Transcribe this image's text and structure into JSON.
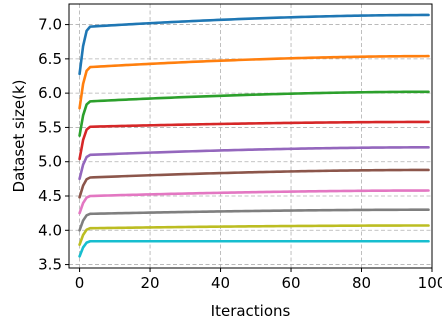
{
  "chart_data": {
    "type": "line",
    "title": "",
    "xlabel": "Iteractions",
    "ylabel": "Dataset size(k)",
    "xlim": [
      -3,
      100
    ],
    "ylim": [
      3.45,
      7.3
    ],
    "xticks": [
      0,
      20,
      40,
      60,
      80,
      100
    ],
    "xtick_labels": [
      "0",
      "20",
      "40",
      "60",
      "80",
      "100"
    ],
    "yticks": [
      3.5,
      4.0,
      4.5,
      5.0,
      5.5,
      6.0,
      6.5,
      7.0
    ],
    "ytick_labels": [
      "3.5",
      "4.0",
      "4.5",
      "5.0",
      "5.5",
      "6.0",
      "6.5",
      "7.0"
    ],
    "grid": true,
    "series": [
      {
        "color": "#1f77b4",
        "start": 6.28,
        "knee": 6.97,
        "end": 7.14
      },
      {
        "color": "#ff7f0e",
        "start": 5.78,
        "knee": 6.38,
        "end": 6.54
      },
      {
        "color": "#2ca02c",
        "start": 5.38,
        "knee": 5.88,
        "end": 6.02
      },
      {
        "color": "#d62728",
        "start": 5.04,
        "knee": 5.51,
        "end": 5.58
      },
      {
        "color": "#9467bd",
        "start": 4.75,
        "knee": 5.1,
        "end": 5.21
      },
      {
        "color": "#8c564b",
        "start": 4.48,
        "knee": 4.77,
        "end": 4.88
      },
      {
        "color": "#e377c2",
        "start": 4.25,
        "knee": 4.5,
        "end": 4.58
      },
      {
        "color": "#7f7f7f",
        "start": 4.0,
        "knee": 4.24,
        "end": 4.3
      },
      {
        "color": "#bcbd22",
        "start": 3.79,
        "knee": 4.03,
        "end": 4.07
      },
      {
        "color": "#17becf",
        "start": 3.62,
        "knee": 3.84,
        "end": 3.84
      }
    ]
  }
}
